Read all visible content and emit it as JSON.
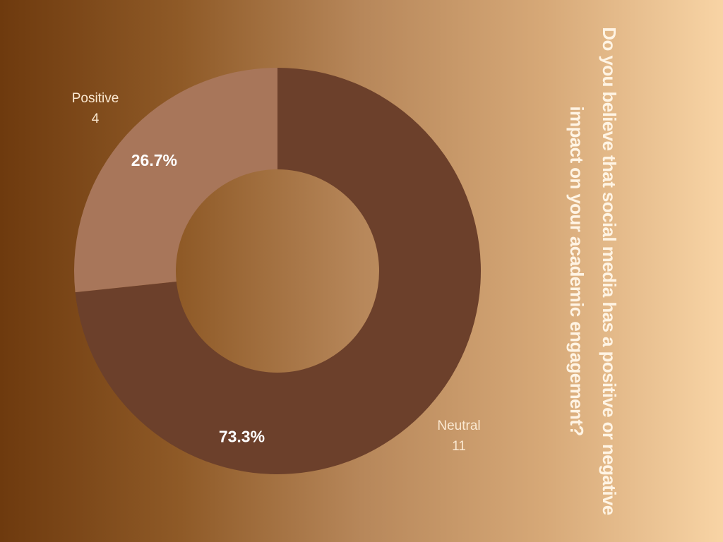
{
  "chart_data": {
    "type": "pie",
    "variant": "donut",
    "title": "Do you believe that social media has a positive or negative impact on your academic engagement?",
    "slices": [
      {
        "label": "Neutral",
        "value": 11,
        "percent": "73.3%",
        "color": "#6c402b"
      },
      {
        "label": "Positive",
        "value": 4,
        "percent": "26.7%",
        "color": "#a8765a"
      }
    ],
    "start_angle": "top",
    "direction": "clockwise",
    "label_color": "#fbe9d2",
    "percent_label_color": "#ffffff"
  }
}
